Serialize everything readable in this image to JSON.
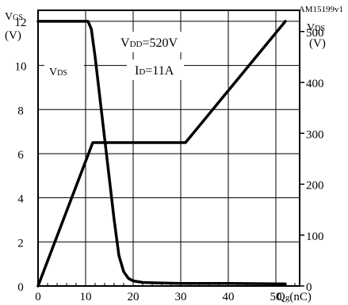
{
  "chart_data": {
    "type": "line",
    "figure_id": "AM15199v1",
    "left_axis": {
      "label_main": "V",
      "label_sub": "GS",
      "unit": "(V)",
      "range": [
        0,
        12.5
      ],
      "ticks": [
        0,
        2,
        4,
        6,
        8,
        10,
        12
      ]
    },
    "right_axis": {
      "label_main": "V",
      "label_sub": "DS",
      "unit": "(V)",
      "range": [
        0,
        541.7
      ],
      "ticks": [
        0,
        100,
        200,
        300,
        400,
        500
      ]
    },
    "x_axis": {
      "label_main": "Q",
      "label_sub": "g",
      "unit": "(nC)",
      "range": [
        0,
        55
      ],
      "ticks": [
        0,
        10,
        20,
        30,
        40,
        50
      ]
    },
    "annotations": {
      "vdd_main": "V",
      "vdd_sub": "DD",
      "vdd_value": "=520V",
      "id_main": "I",
      "id_sub": "D",
      "id_value": "=11A",
      "vds_curve_main": "V",
      "vds_curve_sub": "DS"
    },
    "grid": true,
    "series": [
      {
        "axis": "left",
        "x": [
          0,
          11.5,
          31,
          52
        ],
        "y": [
          0,
          6.5,
          6.5,
          12
        ]
      },
      {
        "axis": "right",
        "x": [
          0,
          10.5,
          11.2,
          12,
          13,
          14,
          15,
          16,
          17,
          18,
          19,
          20,
          22,
          25,
          30,
          40,
          52
        ],
        "y": [
          520,
          520,
          505,
          450,
          370,
          290,
          210,
          130,
          60,
          28,
          15,
          10,
          7,
          6,
          5,
          5,
          4
        ]
      }
    ]
  }
}
